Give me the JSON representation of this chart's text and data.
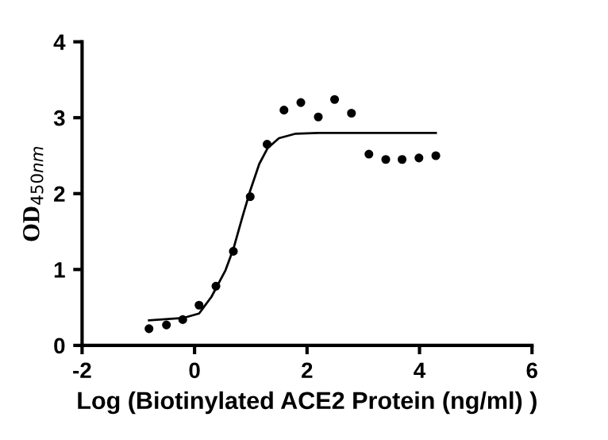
{
  "chart_data": {
    "type": "scatter",
    "xlabel": "Log (Biotinylated ACE2 Protein (ng/ml) )",
    "ylabel": "OD$_{450nm}$",
    "xlim": [
      -2,
      6
    ],
    "ylim": [
      0,
      4
    ],
    "xticks": [
      -2,
      0,
      2,
      4,
      6
    ],
    "yticks": [
      0,
      1,
      2,
      3,
      4
    ],
    "grid": false,
    "legend": false,
    "series": [
      {
        "color": "#000000",
        "marker": "circle",
        "x": [
          -0.81,
          -0.5,
          -0.21,
          0.08,
          0.38,
          0.69,
          0.99,
          1.29,
          1.59,
          1.89,
          2.2,
          2.49,
          2.79,
          3.1,
          3.4,
          3.69,
          3.99,
          4.29
        ],
        "values": [
          0.22,
          0.27,
          0.34,
          0.53,
          0.78,
          1.24,
          1.96,
          2.65,
          3.1,
          3.2,
          3.01,
          3.24,
          3.06,
          2.52,
          2.45,
          2.45,
          2.47,
          2.5
        ]
      },
      {
        "type": "line",
        "color": "#000000",
        "marker": "none",
        "line_style": "solid",
        "x": [
          -0.81,
          -0.21,
          0.08,
          0.3,
          0.55,
          0.69,
          0.85,
          0.99,
          1.15,
          1.3,
          1.5,
          1.8,
          2.2,
          4.29
        ],
        "values": [
          0.33,
          0.36,
          0.42,
          0.64,
          0.99,
          1.27,
          1.69,
          2.04,
          2.39,
          2.6,
          2.73,
          2.79,
          2.8,
          2.8
        ]
      }
    ]
  }
}
